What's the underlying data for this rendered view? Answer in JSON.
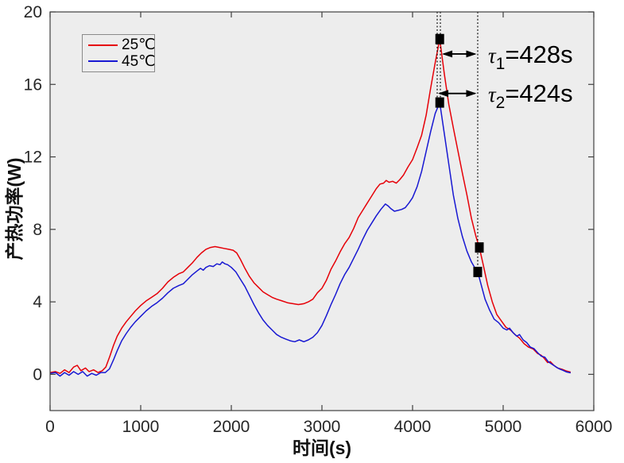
{
  "figure": {
    "background": "#ffffff",
    "plot_background": "#ededed",
    "frame_color": "#3f3f3f",
    "tick_color": "#3f3f3f",
    "text_color": "#262626"
  },
  "chart_data": {
    "type": "line",
    "title": "",
    "xlabel": "时间(s)",
    "ylabel": "产热功率(W)",
    "xlim": [
      0,
      6000
    ],
    "ylim": [
      -2,
      20
    ],
    "x_ticks": [
      0,
      1000,
      2000,
      3000,
      4000,
      5000,
      6000
    ],
    "y_ticks": [
      0,
      4,
      8,
      12,
      16,
      20
    ],
    "grid": false,
    "legend_position": "top-left",
    "series": [
      {
        "name": "25℃",
        "color": "#e60008",
        "points": [
          [
            0,
            0.1
          ],
          [
            60,
            0.15
          ],
          [
            110,
            0.05
          ],
          [
            160,
            0.25
          ],
          [
            210,
            0.1
          ],
          [
            260,
            0.4
          ],
          [
            300,
            0.5
          ],
          [
            340,
            0.2
          ],
          [
            390,
            0.35
          ],
          [
            430,
            0.15
          ],
          [
            480,
            0.25
          ],
          [
            530,
            0.1
          ],
          [
            575,
            0.2
          ],
          [
            615,
            0.4
          ],
          [
            660,
            1.0
          ],
          [
            700,
            1.6
          ],
          [
            740,
            2.1
          ],
          [
            790,
            2.55
          ],
          [
            840,
            2.9
          ],
          [
            890,
            3.2
          ],
          [
            940,
            3.5
          ],
          [
            1000,
            3.8
          ],
          [
            1060,
            4.05
          ],
          [
            1120,
            4.25
          ],
          [
            1180,
            4.45
          ],
          [
            1240,
            4.75
          ],
          [
            1300,
            5.1
          ],
          [
            1360,
            5.35
          ],
          [
            1420,
            5.55
          ],
          [
            1470,
            5.65
          ],
          [
            1520,
            5.9
          ],
          [
            1570,
            6.15
          ],
          [
            1620,
            6.45
          ],
          [
            1670,
            6.7
          ],
          [
            1720,
            6.9
          ],
          [
            1770,
            7.0
          ],
          [
            1820,
            7.05
          ],
          [
            1870,
            7.0
          ],
          [
            1920,
            6.95
          ],
          [
            1970,
            6.9
          ],
          [
            2020,
            6.85
          ],
          [
            2060,
            6.7
          ],
          [
            2100,
            6.35
          ],
          [
            2150,
            5.85
          ],
          [
            2200,
            5.4
          ],
          [
            2250,
            5.05
          ],
          [
            2300,
            4.8
          ],
          [
            2350,
            4.55
          ],
          [
            2400,
            4.4
          ],
          [
            2450,
            4.25
          ],
          [
            2500,
            4.15
          ],
          [
            2560,
            4.05
          ],
          [
            2620,
            3.95
          ],
          [
            2680,
            3.9
          ],
          [
            2740,
            3.85
          ],
          [
            2800,
            3.9
          ],
          [
            2850,
            4.0
          ],
          [
            2900,
            4.15
          ],
          [
            2950,
            4.5
          ],
          [
            3000,
            4.75
          ],
          [
            3050,
            5.2
          ],
          [
            3100,
            5.8
          ],
          [
            3150,
            6.25
          ],
          [
            3200,
            6.75
          ],
          [
            3250,
            7.2
          ],
          [
            3300,
            7.55
          ],
          [
            3350,
            8.05
          ],
          [
            3400,
            8.65
          ],
          [
            3450,
            9.05
          ],
          [
            3500,
            9.45
          ],
          [
            3550,
            9.85
          ],
          [
            3600,
            10.25
          ],
          [
            3640,
            10.5
          ],
          [
            3680,
            10.55
          ],
          [
            3710,
            10.7
          ],
          [
            3740,
            10.6
          ],
          [
            3780,
            10.65
          ],
          [
            3820,
            10.55
          ],
          [
            3860,
            10.75
          ],
          [
            3900,
            11.0
          ],
          [
            3950,
            11.45
          ],
          [
            4000,
            11.85
          ],
          [
            4050,
            12.5
          ],
          [
            4100,
            13.2
          ],
          [
            4150,
            14.3
          ],
          [
            4200,
            15.8
          ],
          [
            4250,
            17.2
          ],
          [
            4300,
            18.5
          ],
          [
            4350,
            16.6
          ],
          [
            4400,
            14.9
          ],
          [
            4450,
            13.6
          ],
          [
            4500,
            12.35
          ],
          [
            4550,
            11.1
          ],
          [
            4600,
            9.9
          ],
          [
            4650,
            8.6
          ],
          [
            4700,
            7.6
          ],
          [
            4737,
            7.0
          ],
          [
            4780,
            6.05
          ],
          [
            4830,
            4.9
          ],
          [
            4880,
            4.0
          ],
          [
            4930,
            3.3
          ],
          [
            4980,
            2.95
          ],
          [
            5030,
            2.6
          ],
          [
            5080,
            2.45
          ],
          [
            5130,
            2.2
          ],
          [
            5180,
            2.0
          ],
          [
            5230,
            1.7
          ],
          [
            5280,
            1.5
          ],
          [
            5330,
            1.4
          ],
          [
            5380,
            1.15
          ],
          [
            5420,
            1.05
          ],
          [
            5450,
            0.9
          ],
          [
            5490,
            0.65
          ],
          [
            5520,
            0.7
          ],
          [
            5560,
            0.5
          ],
          [
            5600,
            0.35
          ],
          [
            5650,
            0.28
          ],
          [
            5690,
            0.2
          ],
          [
            5745,
            0.12
          ]
        ]
      },
      {
        "name": "45℃",
        "color": "#1818d2",
        "points": [
          [
            0,
            0.05
          ],
          [
            60,
            0.1
          ],
          [
            110,
            -0.1
          ],
          [
            160,
            0.1
          ],
          [
            210,
            -0.05
          ],
          [
            260,
            0.15
          ],
          [
            310,
            0.0
          ],
          [
            360,
            0.15
          ],
          [
            410,
            -0.1
          ],
          [
            460,
            0.05
          ],
          [
            510,
            -0.05
          ],
          [
            560,
            0.1
          ],
          [
            610,
            0.1
          ],
          [
            655,
            0.3
          ],
          [
            700,
            0.8
          ],
          [
            740,
            1.3
          ],
          [
            790,
            1.85
          ],
          [
            840,
            2.25
          ],
          [
            890,
            2.6
          ],
          [
            940,
            2.9
          ],
          [
            1000,
            3.2
          ],
          [
            1060,
            3.5
          ],
          [
            1120,
            3.75
          ],
          [
            1180,
            3.95
          ],
          [
            1240,
            4.2
          ],
          [
            1300,
            4.5
          ],
          [
            1360,
            4.75
          ],
          [
            1420,
            4.9
          ],
          [
            1470,
            5.0
          ],
          [
            1520,
            5.25
          ],
          [
            1570,
            5.5
          ],
          [
            1620,
            5.7
          ],
          [
            1660,
            5.85
          ],
          [
            1690,
            5.75
          ],
          [
            1720,
            5.9
          ],
          [
            1760,
            6.0
          ],
          [
            1800,
            5.95
          ],
          [
            1840,
            6.1
          ],
          [
            1875,
            6.05
          ],
          [
            1900,
            6.2
          ],
          [
            1930,
            6.1
          ],
          [
            1960,
            6.05
          ],
          [
            2000,
            5.9
          ],
          [
            2050,
            5.65
          ],
          [
            2100,
            5.25
          ],
          [
            2150,
            4.85
          ],
          [
            2200,
            4.35
          ],
          [
            2250,
            3.85
          ],
          [
            2300,
            3.4
          ],
          [
            2350,
            3.0
          ],
          [
            2400,
            2.7
          ],
          [
            2450,
            2.45
          ],
          [
            2500,
            2.2
          ],
          [
            2550,
            2.05
          ],
          [
            2600,
            1.95
          ],
          [
            2650,
            1.85
          ],
          [
            2700,
            1.8
          ],
          [
            2750,
            1.9
          ],
          [
            2800,
            1.8
          ],
          [
            2850,
            1.9
          ],
          [
            2900,
            2.05
          ],
          [
            2950,
            2.3
          ],
          [
            3000,
            2.7
          ],
          [
            3050,
            3.25
          ],
          [
            3100,
            3.85
          ],
          [
            3150,
            4.4
          ],
          [
            3200,
            5.0
          ],
          [
            3250,
            5.5
          ],
          [
            3300,
            5.9
          ],
          [
            3350,
            6.4
          ],
          [
            3400,
            6.9
          ],
          [
            3450,
            7.45
          ],
          [
            3500,
            7.95
          ],
          [
            3550,
            8.35
          ],
          [
            3600,
            8.75
          ],
          [
            3650,
            9.1
          ],
          [
            3700,
            9.4
          ],
          [
            3730,
            9.3
          ],
          [
            3760,
            9.15
          ],
          [
            3800,
            9.0
          ],
          [
            3840,
            9.05
          ],
          [
            3880,
            9.1
          ],
          [
            3920,
            9.2
          ],
          [
            3960,
            9.45
          ],
          [
            4000,
            9.75
          ],
          [
            4050,
            10.35
          ],
          [
            4100,
            11.2
          ],
          [
            4150,
            12.3
          ],
          [
            4200,
            13.4
          ],
          [
            4250,
            14.4
          ],
          [
            4300,
            15.0
          ],
          [
            4350,
            13.3
          ],
          [
            4400,
            11.6
          ],
          [
            4450,
            9.9
          ],
          [
            4500,
            8.6
          ],
          [
            4550,
            7.6
          ],
          [
            4600,
            6.8
          ],
          [
            4650,
            6.2
          ],
          [
            4690,
            5.85
          ],
          [
            4719,
            5.65
          ],
          [
            4760,
            4.9
          ],
          [
            4800,
            4.15
          ],
          [
            4850,
            3.55
          ],
          [
            4900,
            3.05
          ],
          [
            4950,
            2.85
          ],
          [
            5000,
            2.55
          ],
          [
            5040,
            2.45
          ],
          [
            5070,
            2.55
          ],
          [
            5110,
            2.3
          ],
          [
            5150,
            2.1
          ],
          [
            5180,
            2.2
          ],
          [
            5220,
            1.9
          ],
          [
            5260,
            1.75
          ],
          [
            5300,
            1.5
          ],
          [
            5340,
            1.42
          ],
          [
            5380,
            1.2
          ],
          [
            5420,
            1.0
          ],
          [
            5460,
            0.95
          ],
          [
            5500,
            0.68
          ],
          [
            5540,
            0.55
          ],
          [
            5580,
            0.42
          ],
          [
            5620,
            0.3
          ],
          [
            5660,
            0.22
          ],
          [
            5700,
            0.13
          ],
          [
            5745,
            0.08
          ]
        ]
      }
    ],
    "markers": {
      "shape": "square",
      "color": "#000000",
      "points": [
        {
          "t": 4300,
          "v": 18.5,
          "label": "peak-25c"
        },
        {
          "t": 4300,
          "v": 15.0,
          "label": "peak-45c"
        },
        {
          "t": 4737,
          "v": 7.0,
          "label": "drop-25c"
        },
        {
          "t": 4719,
          "v": 5.65,
          "label": "drop-45c"
        }
      ]
    },
    "dotted_lines": [
      {
        "t": 4272,
        "v_top": 20,
        "v_bottom": 14.8
      },
      {
        "t": 4307,
        "v_top": 20,
        "v_bottom": 14.8
      },
      {
        "t": 4719,
        "v_top": 20,
        "v_bottom": 5.65
      }
    ],
    "arrows": [
      {
        "v": 17.68,
        "t_from": 4325,
        "t_to": 4706
      },
      {
        "v": 15.5,
        "t_from": 4281,
        "t_to": 4706
      }
    ],
    "annotations": [
      {
        "symbol": "τ",
        "subscript": "1",
        "text": "=428s",
        "t": 4833,
        "v": 17.68
      },
      {
        "symbol": "τ",
        "subscript": "2",
        "text": "=424s",
        "t": 4833,
        "v": 15.53
      }
    ]
  }
}
